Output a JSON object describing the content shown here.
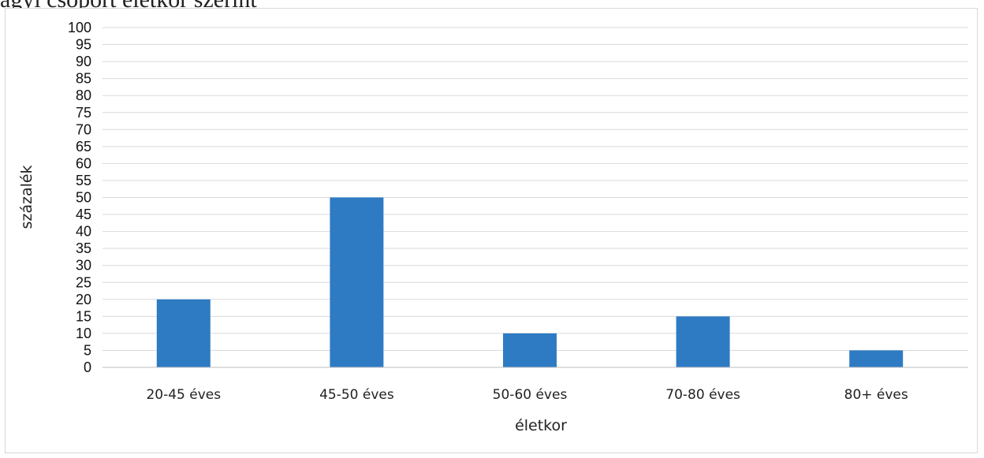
{
  "caption": {
    "text": "ágyi csoport életkor szerint"
  },
  "chart_data": {
    "type": "bar",
    "categories": [
      "20-45 éves",
      "45-50 éves",
      "50-60 éves",
      "70-80 éves",
      "80+ éves"
    ],
    "values": [
      20,
      50,
      10,
      15,
      5
    ],
    "title": "",
    "xlabel": "életkor",
    "ylabel": "százalék",
    "ylim": [
      0,
      100
    ],
    "yticks": [
      0,
      5,
      10,
      15,
      20,
      25,
      30,
      35,
      40,
      45,
      50,
      55,
      60,
      65,
      70,
      75,
      80,
      85,
      90,
      95,
      100
    ],
    "grid": true,
    "legend": "none",
    "bar_color": "#2e7bc4",
    "grid_color": "#d9d9d9"
  }
}
